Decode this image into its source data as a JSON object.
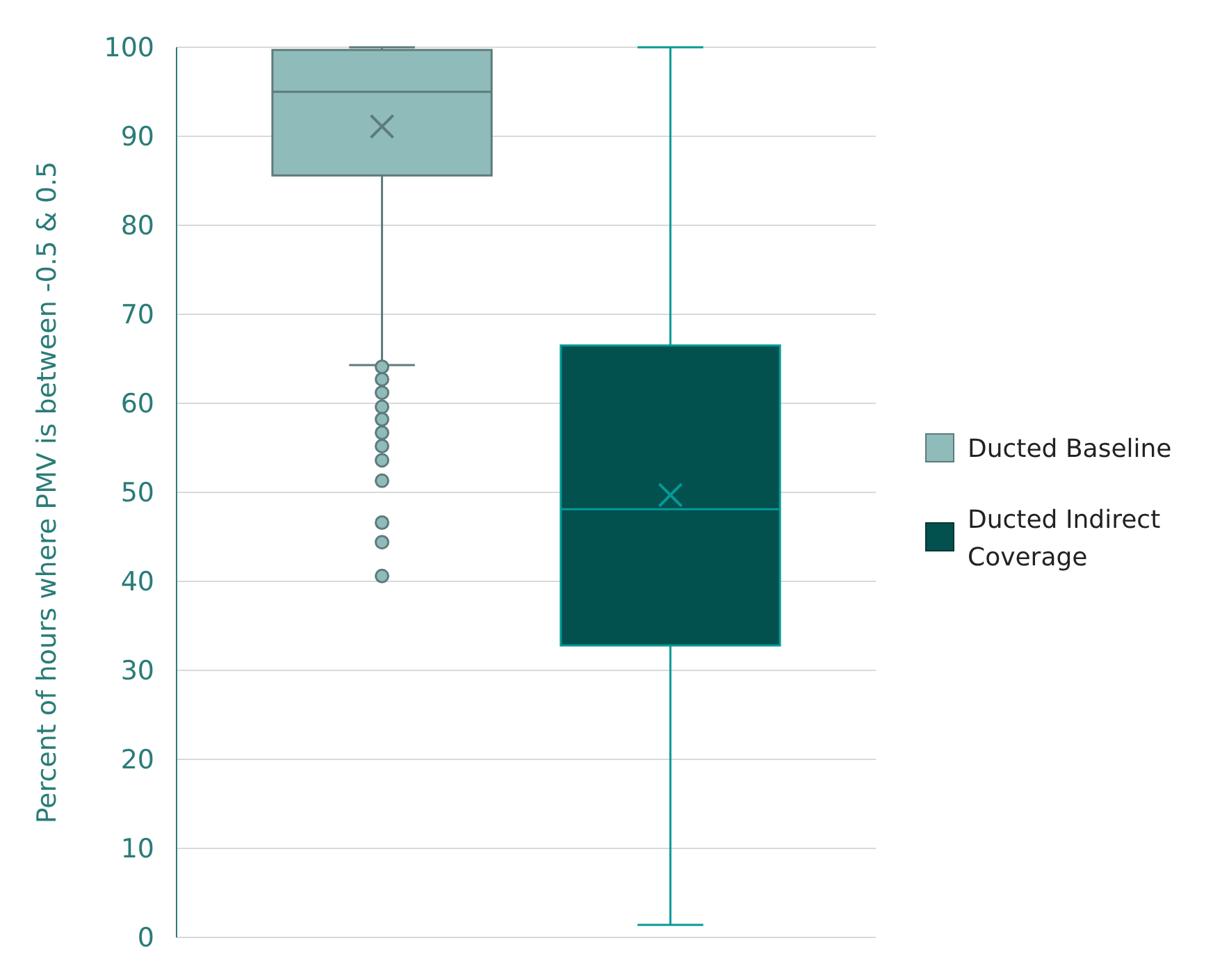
{
  "chart_data": {
    "type": "box",
    "ylabel": "Percent of hours where PMV is between -0.5 & 0.5",
    "categories": [
      null
    ],
    "ylim": [
      0,
      100
    ],
    "yticks": [
      0,
      10,
      20,
      30,
      40,
      50,
      60,
      70,
      80,
      90,
      100
    ],
    "grid": "y",
    "legend": "right",
    "series": [
      {
        "name": "Ducted Baseline",
        "color": "#8fbcbb",
        "boxes": [
          {
            "low": 64.3,
            "q1": 85.6,
            "median": 95,
            "q3": 99.7,
            "high": 100,
            "mean": 91.1,
            "outliers": [
              64.1,
              62.7,
              61.2,
              59.6,
              58.2,
              56.7,
              55.2,
              53.6,
              51.3,
              46.6,
              44.4,
              40.6
            ]
          }
        ]
      },
      {
        "name": "Ducted Indirect Coverage",
        "color": "#02514f",
        "boxes": [
          {
            "low": 1.4,
            "q1": 32.8,
            "median": 48.1,
            "q3": 66.5,
            "high": 100,
            "mean": 49.7
          }
        ]
      }
    ]
  }
}
